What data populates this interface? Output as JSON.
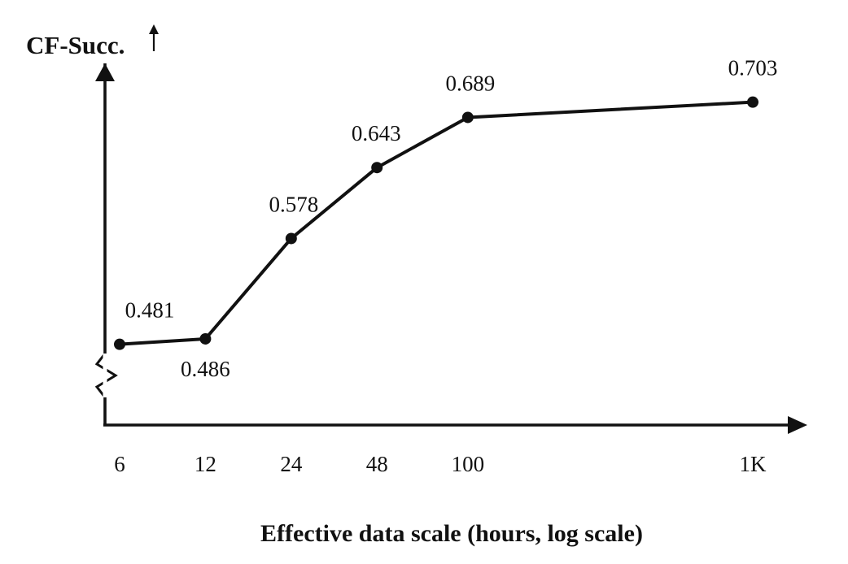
{
  "chart_data": {
    "type": "line",
    "title": "",
    "ylabel": "CF-Succ.",
    "xlabel": "Effective data scale (hours, log scale)",
    "x_scale": "log",
    "x": [
      6,
      12,
      24,
      48,
      100,
      1000
    ],
    "x_tick_labels": [
      "6",
      "12",
      "24",
      "48",
      "100",
      "1K"
    ],
    "series": [
      {
        "values": [
          0.481,
          0.486,
          0.578,
          0.643,
          0.689,
          0.703
        ],
        "point_labels": [
          "0.481",
          "0.486",
          "0.578",
          "0.643",
          "0.689",
          "0.703"
        ]
      }
    ],
    "grid": false,
    "legend": "none",
    "y_axis_break": true,
    "color": "#111111"
  }
}
